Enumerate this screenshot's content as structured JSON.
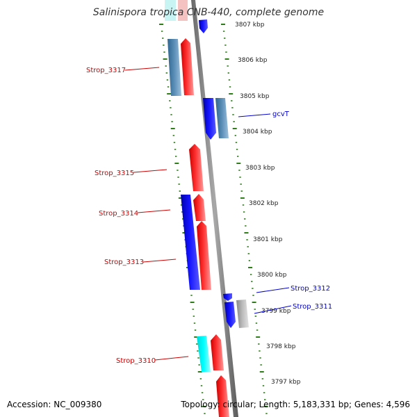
{
  "title": "Salinispora tropica CNB-440, complete genome",
  "accession_text": "Accession: NC_009380",
  "topology_text": "Topology: circular; Length: 5,183,331 bp; Genes: 4,596",
  "colors": {
    "label_red": "#cc0000",
    "label_blue": "#0000cc",
    "strand_red": "#ff0000",
    "strand_blue": "#0000ee",
    "steel_blue": "#4f86b0",
    "cyan": "#00ffff",
    "gray": "#b0b0b0",
    "tick_green": "#2e7d1a"
  },
  "kbp_labels": [
    "3807 kbp",
    "3806 kbp",
    "3805 kbp",
    "3804 kbp",
    "3803 kbp",
    "3802 kbp",
    "3801 kbp",
    "3800 kbp",
    "3799 kbp",
    "3798 kbp",
    "3797 kbp"
  ],
  "gene_labels": [
    {
      "text": "Strop_3317",
      "side": "left",
      "color": "red"
    },
    {
      "text": "gcvT",
      "side": "right",
      "color": "blue"
    },
    {
      "text": "Strop_3315",
      "side": "left",
      "color": "red"
    },
    {
      "text": "Strop_3314",
      "side": "left",
      "color": "red"
    },
    {
      "text": "Strop_3313",
      "side": "left",
      "color": "red"
    },
    {
      "text": "Strop_3312",
      "side": "right",
      "color": "blue"
    },
    {
      "text": "Strop_3311",
      "side": "right",
      "color": "blue"
    },
    {
      "text": "Strop_3310",
      "side": "left",
      "color": "red"
    }
  ]
}
